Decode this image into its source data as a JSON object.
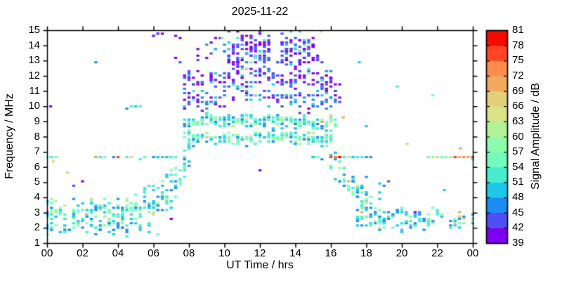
{
  "chart_data": {
    "type": "scatter",
    "title": "2025-11-22",
    "xlabel": "UT Time / hrs",
    "ylabel": "Frequency / MHz",
    "xlim": [
      0,
      24
    ],
    "ylim": [
      1,
      15
    ],
    "grid": false,
    "xticks": [
      {
        "t": 0,
        "label": "00"
      },
      {
        "t": 2,
        "label": "02"
      },
      {
        "t": 4,
        "label": "04"
      },
      {
        "t": 6,
        "label": "06"
      },
      {
        "t": 8,
        "label": "08"
      },
      {
        "t": 10,
        "label": "10"
      },
      {
        "t": 12,
        "label": "12"
      },
      {
        "t": 14,
        "label": "14"
      },
      {
        "t": 16,
        "label": "16"
      },
      {
        "t": 18,
        "label": "18"
      },
      {
        "t": 20,
        "label": "20"
      },
      {
        "t": 22,
        "label": "22"
      },
      {
        "t": 24,
        "label": "00"
      }
    ],
    "yticks": [
      1,
      2,
      3,
      4,
      5,
      6,
      7,
      8,
      9,
      10,
      11,
      12,
      13,
      14,
      15
    ],
    "colorbar": {
      "label": "Signal Amplitude / dB",
      "min": 39,
      "max": 81,
      "tick_step": 3,
      "ticks": [
        39,
        42,
        45,
        48,
        51,
        54,
        57,
        60,
        63,
        66,
        69,
        72,
        75,
        78,
        81
      ],
      "colors": [
        "#7F00F0",
        "#4E4EF5",
        "#1E8CF5",
        "#1EC8E8",
        "#46EDCE",
        "#73FBBE",
        "#8CFCAC",
        "#B2F295",
        "#D8E38A",
        "#E2CF79",
        "#F0A95D",
        "#FF8C4B",
        "#FF4524",
        "#F60B00"
      ]
    },
    "time_step_hrs": 0.25,
    "freq_step_mhz": 0.145,
    "bands": [
      {
        "name": "night-low-band",
        "t0": 0,
        "t1": 6.9,
        "fc": [
          [
            0,
            3.0
          ],
          [
            1.5,
            2.85
          ],
          [
            3,
            2.9
          ],
          [
            4.5,
            3.2
          ],
          [
            5.5,
            3.6
          ],
          [
            6.9,
            4.1
          ]
        ],
        "spread": 1.05,
        "perCol": [
          5,
          11
        ],
        "amp": [
          45,
          61
        ],
        "hotProb": 0.03,
        "hotAmp": [
          62,
          74
        ],
        "colProb": 0.97
      },
      {
        "name": "night-low-deep",
        "t0": 0,
        "t1": 6.6,
        "fc": [
          [
            0,
            1.9
          ],
          [
            6.6,
            2.0
          ]
        ],
        "spread": 0.45,
        "perCol": [
          1,
          3
        ],
        "amp": [
          45,
          55
        ],
        "hotProb": 0,
        "hotAmp": [
          59,
          63
        ],
        "colProb": 0.75
      },
      {
        "name": "line-6.6MHz-morning",
        "t0": 2.7,
        "t1": 7.9,
        "fc": [
          [
            2.7,
            6.62
          ],
          [
            7.9,
            6.62
          ]
        ],
        "spread": 0.07,
        "perCol": [
          1,
          2
        ],
        "amp": [
          47,
          57
        ],
        "hotProb": 0.1,
        "hotAmp": [
          63,
          80
        ],
        "colProb": 0.85
      },
      {
        "name": "line-6.6MHz-early",
        "t0": 0,
        "t1": 0.6,
        "fc": [
          [
            0,
            6.6
          ],
          [
            0.6,
            6.6
          ]
        ],
        "spread": 0.05,
        "perCol": [
          1,
          1
        ],
        "amp": [
          48,
          55
        ],
        "hotProb": 0,
        "hotAmp": [
          56,
          58
        ],
        "colProb": 0.9
      },
      {
        "name": "line-9.9MHz",
        "t0": 4.3,
        "t1": 5.4,
        "fc": [
          [
            4.3,
            9.92
          ],
          [
            5.4,
            9.92
          ]
        ],
        "spread": 0.05,
        "perCol": [
          1,
          1
        ],
        "amp": [
          44,
          58
        ],
        "hotProb": 0,
        "hotAmp": [
          59,
          60
        ],
        "colProb": 0.9
      },
      {
        "name": "morning-rise",
        "t0": 6.6,
        "t1": 8.1,
        "fc": [
          [
            6.6,
            3.9
          ],
          [
            7.3,
            5.3
          ],
          [
            8.1,
            7.2
          ]
        ],
        "spread": 1.35,
        "perCol": [
          4,
          9
        ],
        "amp": [
          44,
          58
        ],
        "hotProb": 0.02,
        "hotAmp": [
          60,
          68
        ],
        "colProb": 1
      },
      {
        "name": "day-F-upper",
        "t0": 7.6,
        "t1": 16.3,
        "fc": [
          [
            7.6,
            8.8
          ],
          [
            9,
            9.1
          ],
          [
            13,
            9.0
          ],
          [
            16.3,
            8.8
          ]
        ],
        "spread": 0.4,
        "perCol": [
          4,
          8
        ],
        "amp": [
          46,
          61
        ],
        "hotProb": 0.04,
        "hotAmp": [
          62,
          71
        ],
        "colProb": 1
      },
      {
        "name": "day-F-lower",
        "t0": 7.6,
        "t1": 16.1,
        "fc": [
          [
            7.6,
            7.9
          ],
          [
            16.1,
            7.9
          ]
        ],
        "spread": 0.45,
        "perCol": [
          3,
          7
        ],
        "amp": [
          47,
          60
        ],
        "hotProb": 0.03,
        "hotAmp": [
          62,
          71
        ],
        "colProb": 0.97
      },
      {
        "name": "day-mid-scatter",
        "t0": 7.7,
        "t1": 16.4,
        "fc": [
          [
            7.7,
            10.5
          ],
          [
            12,
            10.8
          ],
          [
            16.4,
            10.3
          ]
        ],
        "spread": 0.85,
        "perCol": [
          2,
          5
        ],
        "amp": [
          39,
          50
        ],
        "hotProb": 0.03,
        "hotAmp": [
          51,
          57
        ],
        "colProb": 0.92
      },
      {
        "name": "day-high-mid",
        "t0": 7.7,
        "t1": 16.0,
        "fc": [
          [
            7.7,
            11.9
          ],
          [
            16,
            11.9
          ]
        ],
        "spread": 0.6,
        "perCol": [
          2,
          5
        ],
        "amp": [
          39,
          46
        ],
        "hotProb": 0.05,
        "hotAmp": [
          48,
          54
        ],
        "colProb": 0.9
      },
      {
        "name": "day-high-dense-1",
        "t0": 10.2,
        "t1": 12.5,
        "fc": [
          [
            10.2,
            13.6
          ],
          [
            12.5,
            13.6
          ]
        ],
        "spread": 1.35,
        "perCol": [
          9,
          16
        ],
        "amp": [
          39,
          45
        ],
        "hotProb": 0.15,
        "hotAmp": [
          46,
          56
        ],
        "colProb": 1
      },
      {
        "name": "day-high-dense-2",
        "t0": 13.1,
        "t1": 15.2,
        "fc": [
          [
            13.1,
            13.6
          ],
          [
            15.2,
            13.6
          ]
        ],
        "spread": 1.3,
        "perCol": [
          8,
          14
        ],
        "amp": [
          39,
          45
        ],
        "hotProb": 0.2,
        "hotAmp": [
          46,
          56
        ],
        "colProb": 1
      },
      {
        "name": "day-high-sparse",
        "t0": 8.3,
        "t1": 10.2,
        "fc": [
          [
            8.3,
            13.5
          ],
          [
            10.2,
            13.5
          ]
        ],
        "spread": 1.25,
        "perCol": [
          1,
          4
        ],
        "amp": [
          39,
          46
        ],
        "hotProb": 0.05,
        "hotAmp": [
          47,
          55
        ],
        "colProb": 0.85
      },
      {
        "name": "day-high-gap",
        "t0": 12.5,
        "t1": 13.1,
        "fc": [
          [
            12.5,
            13.5
          ],
          [
            13.1,
            13.5
          ]
        ],
        "spread": 1.2,
        "perCol": [
          2,
          5
        ],
        "amp": [
          39,
          46
        ],
        "hotProb": 0.1,
        "hotAmp": [
          47,
          55
        ],
        "colProb": 0.9
      },
      {
        "name": "afternoon-high-taper",
        "t0": 15.2,
        "t1": 16.6,
        "fc": [
          [
            15.2,
            12.3
          ],
          [
            16.6,
            10.6
          ]
        ],
        "spread": 1.15,
        "perCol": [
          3,
          6
        ],
        "amp": [
          39,
          48
        ],
        "hotProb": 0.15,
        "hotAmp": [
          49,
          55
        ],
        "colProb": 0.95
      },
      {
        "name": "dawn-top-dots",
        "t0": 5.7,
        "t1": 7.5,
        "fc": [
          [
            5.7,
            14.7
          ],
          [
            7.5,
            14.7
          ]
        ],
        "spread": 0.3,
        "perCol": [
          1,
          2
        ],
        "amp": [
          39,
          43
        ],
        "hotProb": 0,
        "hotAmp": [
          44,
          45
        ],
        "colProb": 0.7
      },
      {
        "name": "dawn-high-dots",
        "t0": 6.6,
        "t1": 7.6,
        "fc": [
          [
            6.6,
            12.9
          ],
          [
            7.6,
            12.9
          ]
        ],
        "spread": 0.5,
        "perCol": [
          1,
          2
        ],
        "amp": [
          39,
          44
        ],
        "hotProb": 0,
        "hotAmp": [
          45,
          46
        ],
        "colProb": 0.65
      },
      {
        "name": "evening-descent",
        "t0": 15.8,
        "t1": 18.9,
        "fc": [
          [
            15.8,
            6.7
          ],
          [
            16.5,
            5.6
          ],
          [
            17.2,
            4.5
          ],
          [
            18,
            3.7
          ],
          [
            18.9,
            3.1
          ]
        ],
        "spread": 0.95,
        "perCol": [
          3,
          8
        ],
        "amp": [
          44,
          59
        ],
        "hotProb": 0.03,
        "hotAmp": [
          60,
          70
        ],
        "colProb": 1
      },
      {
        "name": "line-6.6MHz-evening",
        "t0": 14.9,
        "t1": 18.4,
        "fc": [
          [
            14.9,
            6.62
          ],
          [
            18.4,
            6.62
          ]
        ],
        "spread": 0.06,
        "perCol": [
          1,
          2
        ],
        "amp": [
          45,
          56
        ],
        "hotProb": 0.05,
        "hotAmp": [
          60,
          70
        ],
        "colProb": 0.9
      },
      {
        "name": "line-6.6MHz-red-burst",
        "t0": 16.0,
        "t1": 16.6,
        "fc": [
          [
            16,
            6.62
          ],
          [
            16.6,
            6.62
          ]
        ],
        "spread": 0.05,
        "perCol": [
          1,
          2
        ],
        "amp": [
          72,
          81
        ],
        "hotProb": 0,
        "hotAmp": [
          72,
          81
        ],
        "colProb": 1
      },
      {
        "name": "line-6.6MHz-night",
        "t0": 21.5,
        "t1": 24,
        "fc": [
          [
            21.5,
            6.62
          ],
          [
            24,
            6.62
          ]
        ],
        "spread": 0.06,
        "perCol": [
          1,
          2
        ],
        "amp": [
          48,
          60
        ],
        "hotProb": 0.2,
        "hotAmp": [
          63,
          78
        ],
        "colProb": 0.9
      },
      {
        "name": "line-6.6MHz-red-night",
        "t0": 22.9,
        "t1": 24,
        "fc": [
          [
            22.9,
            6.62
          ],
          [
            24,
            6.62
          ]
        ],
        "spread": 0.04,
        "perCol": [
          1,
          1
        ],
        "amp": [
          68,
          81
        ],
        "hotProb": 0,
        "hotAmp": [
          72,
          81
        ],
        "colProb": 0.8
      },
      {
        "name": "evening-low-band",
        "t0": 17.3,
        "t1": 24,
        "fc": [
          [
            17.3,
            2.8
          ],
          [
            19,
            2.45
          ],
          [
            21,
            2.5
          ],
          [
            24,
            2.6
          ]
        ],
        "spread": 0.7,
        "perCol": [
          3,
          7
        ],
        "amp": [
          45,
          58
        ],
        "hotProb": 0.04,
        "hotAmp": [
          59,
          70
        ],
        "colProb": 0.95
      },
      {
        "name": "evening-mid-cluster",
        "t0": 17.7,
        "t1": 19.4,
        "fc": [
          [
            17.7,
            4.9
          ],
          [
            19.4,
            4.6
          ]
        ],
        "spread": 0.8,
        "perCol": [
          1,
          4
        ],
        "amp": [
          42,
          55
        ],
        "hotProb": 0,
        "hotAmp": [
          56,
          58
        ],
        "colProb": 0.8
      },
      {
        "name": "sporadic-outliers",
        "t0": 0,
        "t1": 24,
        "fc": [
          [
            0,
            8
          ],
          [
            24,
            8
          ]
        ],
        "spread": 6.5,
        "perCol": [
          0,
          1
        ],
        "amp": [
          39,
          58
        ],
        "hotProb": 0.1,
        "hotAmp": [
          59,
          72
        ],
        "colProb": 0.45
      }
    ],
    "singles": [
      {
        "t": 0.2,
        "f": 10.0,
        "a": 40
      },
      {
        "t": 0.35,
        "f": 6.3,
        "a": 67
      },
      {
        "t": 1.15,
        "f": 5.62,
        "a": 67
      },
      {
        "t": 9.9,
        "f": 14.5,
        "a": 60
      },
      {
        "t": 12.15,
        "f": 14.9,
        "a": 61
      },
      {
        "t": 15.45,
        "f": 14.85,
        "a": 60
      },
      {
        "t": 16.0,
        "f": 9.4,
        "a": 67
      },
      {
        "t": 16.7,
        "f": 9.3,
        "a": 71
      },
      {
        "t": 20.3,
        "f": 7.5,
        "a": 66
      },
      {
        "t": 23.3,
        "f": 7.2,
        "a": 70
      },
      {
        "t": 22.4,
        "f": 4.5,
        "a": 50
      },
      {
        "t": 17.6,
        "f": 12.9,
        "a": 50
      },
      {
        "t": 18.0,
        "f": 8.7,
        "a": 50
      }
    ]
  }
}
